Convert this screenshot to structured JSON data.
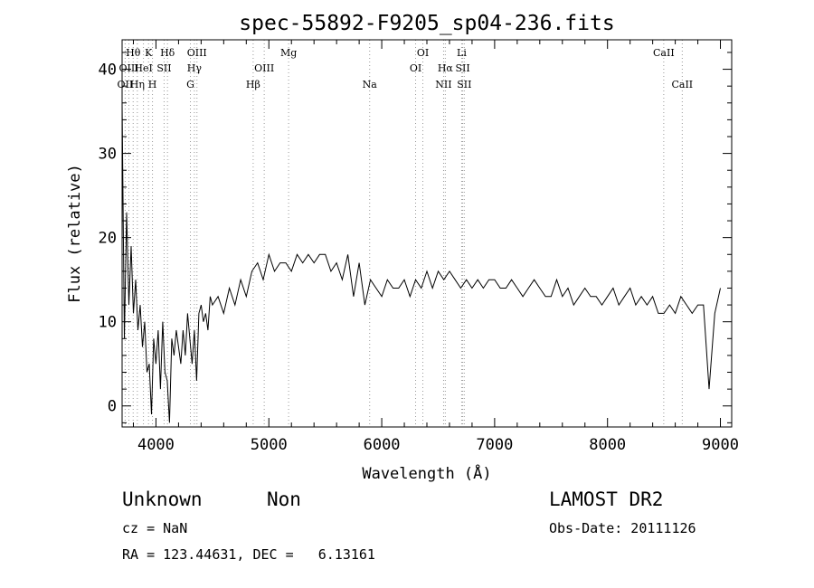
{
  "chart_data": {
    "type": "line",
    "title": "spec-55892-F9205_sp04-236.fits",
    "xlabel": "Wavelength (Å)",
    "ylabel": "Flux (relative)",
    "xlim": [
      3700,
      9100
    ],
    "ylim": [
      -2.5,
      43.5
    ],
    "xticks": [
      4000,
      5000,
      6000,
      7000,
      8000,
      9000
    ],
    "yticks": [
      0,
      10,
      20,
      30,
      40
    ],
    "grid": false,
    "series": [
      {
        "x": [
          3700,
          3720,
          3740,
          3760,
          3780,
          3800,
          3820,
          3840,
          3860,
          3880,
          3900,
          3920,
          3940,
          3960,
          3980,
          4000,
          4020,
          4040,
          4060,
          4080,
          4100,
          4120,
          4140,
          4160,
          4180,
          4200,
          4220,
          4240,
          4260,
          4280,
          4300,
          4320,
          4340,
          4360,
          4380,
          4400,
          4420,
          4440,
          4460,
          4480,
          4500,
          4550,
          4600,
          4650,
          4700,
          4750,
          4800,
          4850,
          4900,
          4950,
          5000,
          5050,
          5100,
          5150,
          5200,
          5250,
          5300,
          5350,
          5400,
          5450,
          5500,
          5550,
          5600,
          5650,
          5700,
          5750,
          5800,
          5850,
          5900,
          5950,
          6000,
          6050,
          6100,
          6150,
          6200,
          6250,
          6300,
          6350,
          6400,
          6450,
          6500,
          6550,
          6600,
          6650,
          6700,
          6750,
          6800,
          6850,
          6900,
          6950,
          7000,
          7050,
          7100,
          7150,
          7200,
          7250,
          7300,
          7350,
          7400,
          7450,
          7500,
          7550,
          7600,
          7650,
          7700,
          7750,
          7800,
          7850,
          7900,
          7950,
          8000,
          8050,
          8100,
          8150,
          8200,
          8250,
          8300,
          8350,
          8400,
          8450,
          8500,
          8550,
          8600,
          8650,
          8700,
          8750,
          8800,
          8850,
          8900,
          8950,
          9000
        ],
        "y": [
          36,
          8,
          23,
          12,
          19,
          11,
          15,
          9,
          12,
          7,
          10,
          4,
          5,
          -1,
          8,
          5,
          9,
          2,
          10,
          4,
          3,
          -2,
          8,
          6,
          9,
          7,
          5,
          9,
          6,
          11,
          8,
          5,
          9,
          3,
          11,
          12,
          10,
          11,
          9,
          13,
          12,
          13,
          11,
          14,
          12,
          15,
          13,
          16,
          17,
          15,
          18,
          16,
          17,
          17,
          16,
          18,
          17,
          18,
          17,
          18,
          18,
          16,
          17,
          15,
          18,
          13,
          17,
          12,
          15,
          14,
          13,
          15,
          14,
          14,
          15,
          13,
          15,
          14,
          16,
          14,
          16,
          15,
          16,
          15,
          14,
          15,
          14,
          15,
          14,
          15,
          15,
          14,
          14,
          15,
          14,
          13,
          14,
          15,
          14,
          13,
          13,
          15,
          13,
          14,
          12,
          13,
          14,
          13,
          13,
          12,
          13,
          14,
          12,
          13,
          14,
          12,
          13,
          12,
          13,
          11,
          11,
          12,
          11,
          13,
          12,
          11,
          12,
          12,
          2,
          11,
          14
        ]
      }
    ],
    "lines": [
      {
        "label": "OII",
        "x": 3727,
        "row": 3
      },
      {
        "label": "Hθ",
        "x": 3798,
        "row": 1
      },
      {
        "label": "OIII",
        "x": 3760,
        "row": 2
      },
      {
        "label": "Hη",
        "x": 3835,
        "row": 3
      },
      {
        "label": "HeI",
        "x": 3889,
        "row": 2
      },
      {
        "label": "K",
        "x": 3934,
        "row": 1
      },
      {
        "label": "H",
        "x": 3969,
        "row": 3
      },
      {
        "label": "SII",
        "x": 4072,
        "row": 2
      },
      {
        "label": "Hδ",
        "x": 4102,
        "row": 1
      },
      {
        "label": "OIII",
        "x": 4363,
        "row": 1
      },
      {
        "label": "Hγ",
        "x": 4340,
        "row": 2
      },
      {
        "label": "G",
        "x": 4305,
        "row": 3
      },
      {
        "label": "Hβ",
        "x": 4861,
        "row": 3
      },
      {
        "label": "OIII",
        "x": 4959,
        "row": 2
      },
      {
        "label": "Mg",
        "x": 5175,
        "row": 1
      },
      {
        "label": "Na",
        "x": 5893,
        "row": 3
      },
      {
        "label": "OI",
        "x": 6300,
        "row": 2
      },
      {
        "label": "OI",
        "x": 6364,
        "row": 1
      },
      {
        "label": "NII",
        "x": 6548,
        "row": 3
      },
      {
        "label": "Hα",
        "x": 6563,
        "row": 2
      },
      {
        "label": "Li",
        "x": 6708,
        "row": 1
      },
      {
        "label": "SII",
        "x": 6717,
        "row": 2
      },
      {
        "label": "SII",
        "x": 6731,
        "row": 3
      },
      {
        "label": "CaII",
        "x": 8498,
        "row": 1
      },
      {
        "label": "CaII",
        "x": 8662,
        "row": 3
      }
    ]
  },
  "footer": {
    "class_label": "Unknown",
    "subclass_label": "Non",
    "cz": "cz = NaN",
    "radec": "RA = 123.44631, DEC =   6.13161",
    "survey": "LAMOST DR2",
    "obs_date": "Obs-Date: 20111126"
  }
}
